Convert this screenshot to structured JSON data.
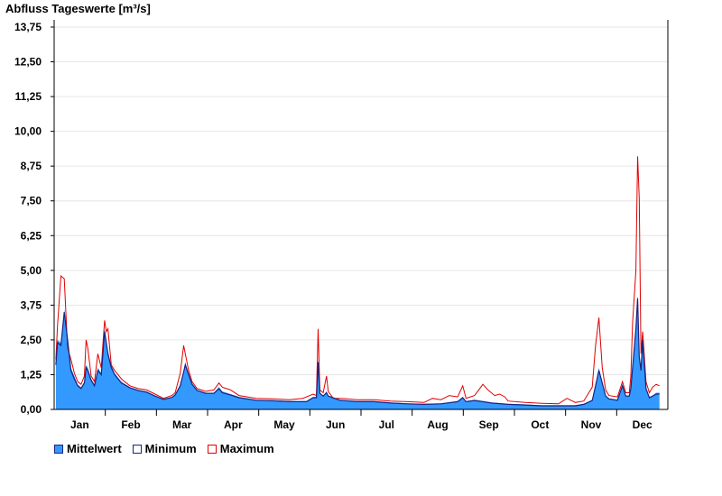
{
  "chart_data": {
    "type": "area",
    "title": "Abfluss Tageswerte [m³/s]",
    "xlabel": "",
    "ylabel": "",
    "ylim": [
      0,
      13.75
    ],
    "yticks": [
      "0,00",
      "1,25",
      "2,50",
      "3,75",
      "5,00",
      "6,25",
      "7,50",
      "8,75",
      "10,00",
      "11,25",
      "12,50",
      "13,75"
    ],
    "categories": [
      "Jan",
      "Feb",
      "Mar",
      "Apr",
      "May",
      "Jun",
      "Jul",
      "Aug",
      "Sep",
      "Oct",
      "Nov",
      "Dec"
    ],
    "grid": true,
    "legend_position": "bottom-left",
    "series": [
      {
        "name": "Mittelwert",
        "color": "#3399ff",
        "points": [
          [
            1,
            1.6
          ],
          [
            2,
            2.5
          ],
          [
            4,
            2.4
          ],
          [
            6,
            3.6
          ],
          [
            8,
            2.6
          ],
          [
            10,
            1.5
          ],
          [
            12,
            1.2
          ],
          [
            14,
            0.9
          ],
          [
            16,
            0.8
          ],
          [
            18,
            1.0
          ],
          [
            19,
            1.6
          ],
          [
            20,
            1.5
          ],
          [
            22,
            1.1
          ],
          [
            24,
            0.9
          ],
          [
            26,
            1.5
          ],
          [
            28,
            1.3
          ],
          [
            30,
            2.9
          ],
          [
            32,
            2.1
          ],
          [
            34,
            1.6
          ],
          [
            36,
            1.3
          ],
          [
            40,
            1.0
          ],
          [
            45,
            0.8
          ],
          [
            50,
            0.7
          ],
          [
            55,
            0.65
          ],
          [
            60,
            0.5
          ],
          [
            65,
            0.38
          ],
          [
            70,
            0.45
          ],
          [
            72,
            0.55
          ],
          [
            75,
            0.9
          ],
          [
            77,
            1.4
          ],
          [
            78,
            1.7
          ],
          [
            80,
            1.3
          ],
          [
            82,
            0.95
          ],
          [
            85,
            0.7
          ],
          [
            90,
            0.6
          ],
          [
            95,
            0.6
          ],
          [
            98,
            0.8
          ],
          [
            100,
            0.65
          ],
          [
            105,
            0.55
          ],
          [
            110,
            0.45
          ],
          [
            120,
            0.35
          ],
          [
            130,
            0.33
          ],
          [
            140,
            0.3
          ],
          [
            150,
            0.3
          ],
          [
            154,
            0.45
          ],
          [
            156,
            0.45
          ],
          [
            157,
            1.8
          ],
          [
            158,
            0.6
          ],
          [
            160,
            0.5
          ],
          [
            162,
            0.65
          ],
          [
            163,
            0.5
          ],
          [
            170,
            0.35
          ],
          [
            180,
            0.3
          ],
          [
            190,
            0.3
          ],
          [
            200,
            0.25
          ],
          [
            210,
            0.22
          ],
          [
            220,
            0.2
          ],
          [
            230,
            0.22
          ],
          [
            240,
            0.3
          ],
          [
            243,
            0.45
          ],
          [
            245,
            0.3
          ],
          [
            250,
            0.35
          ],
          [
            255,
            0.3
          ],
          [
            260,
            0.25
          ],
          [
            270,
            0.2
          ],
          [
            280,
            0.18
          ],
          [
            290,
            0.15
          ],
          [
            300,
            0.15
          ],
          [
            310,
            0.15
          ],
          [
            315,
            0.2
          ],
          [
            320,
            0.35
          ],
          [
            322,
            0.9
          ],
          [
            324,
            1.5
          ],
          [
            326,
            1.0
          ],
          [
            328,
            0.5
          ],
          [
            330,
            0.4
          ],
          [
            335,
            0.35
          ],
          [
            338,
            0.9
          ],
          [
            340,
            0.5
          ],
          [
            342,
            0.5
          ],
          [
            343,
            0.8
          ],
          [
            344,
            1.6
          ],
          [
            346,
            3.0
          ],
          [
            347,
            4.1
          ],
          [
            348,
            2.0
          ],
          [
            349,
            1.5
          ],
          [
            350,
            2.6
          ],
          [
            352,
            0.8
          ],
          [
            354,
            0.45
          ],
          [
            356,
            0.5
          ],
          [
            358,
            0.6
          ],
          [
            360,
            0.6
          ]
        ]
      },
      {
        "name": "Minimum",
        "color": "#1a237e",
        "points": [
          [
            1,
            1.6
          ],
          [
            2,
            2.4
          ],
          [
            4,
            2.3
          ],
          [
            6,
            3.5
          ],
          [
            8,
            2.5
          ],
          [
            10,
            1.4
          ],
          [
            12,
            1.1
          ],
          [
            14,
            0.85
          ],
          [
            16,
            0.75
          ],
          [
            18,
            0.95
          ],
          [
            19,
            1.5
          ],
          [
            20,
            1.4
          ],
          [
            22,
            1.05
          ],
          [
            24,
            0.85
          ],
          [
            26,
            1.4
          ],
          [
            28,
            1.25
          ],
          [
            30,
            2.8
          ],
          [
            32,
            2.0
          ],
          [
            34,
            1.5
          ],
          [
            36,
            1.25
          ],
          [
            40,
            0.95
          ],
          [
            45,
            0.78
          ],
          [
            50,
            0.68
          ],
          [
            55,
            0.62
          ],
          [
            60,
            0.48
          ],
          [
            65,
            0.36
          ],
          [
            70,
            0.43
          ],
          [
            72,
            0.52
          ],
          [
            75,
            0.85
          ],
          [
            77,
            1.35
          ],
          [
            78,
            1.6
          ],
          [
            80,
            1.25
          ],
          [
            82,
            0.9
          ],
          [
            85,
            0.68
          ],
          [
            90,
            0.58
          ],
          [
            95,
            0.58
          ],
          [
            98,
            0.75
          ],
          [
            100,
            0.6
          ],
          [
            105,
            0.52
          ],
          [
            110,
            0.42
          ],
          [
            120,
            0.33
          ],
          [
            130,
            0.31
          ],
          [
            140,
            0.28
          ],
          [
            150,
            0.28
          ],
          [
            154,
            0.42
          ],
          [
            156,
            0.42
          ],
          [
            157,
            1.7
          ],
          [
            158,
            0.58
          ],
          [
            160,
            0.48
          ],
          [
            162,
            0.6
          ],
          [
            163,
            0.48
          ],
          [
            170,
            0.33
          ],
          [
            180,
            0.28
          ],
          [
            190,
            0.28
          ],
          [
            200,
            0.23
          ],
          [
            210,
            0.2
          ],
          [
            220,
            0.18
          ],
          [
            230,
            0.2
          ],
          [
            240,
            0.28
          ],
          [
            243,
            0.42
          ],
          [
            245,
            0.28
          ],
          [
            250,
            0.32
          ],
          [
            255,
            0.28
          ],
          [
            260,
            0.23
          ],
          [
            270,
            0.18
          ],
          [
            280,
            0.16
          ],
          [
            290,
            0.13
          ],
          [
            300,
            0.13
          ],
          [
            310,
            0.13
          ],
          [
            315,
            0.18
          ],
          [
            320,
            0.32
          ],
          [
            322,
            0.85
          ],
          [
            324,
            1.4
          ],
          [
            326,
            0.95
          ],
          [
            328,
            0.48
          ],
          [
            330,
            0.38
          ],
          [
            335,
            0.33
          ],
          [
            338,
            0.85
          ],
          [
            340,
            0.48
          ],
          [
            342,
            0.48
          ],
          [
            343,
            0.75
          ],
          [
            344,
            1.5
          ],
          [
            346,
            2.9
          ],
          [
            347,
            4.0
          ],
          [
            348,
            1.9
          ],
          [
            349,
            1.4
          ],
          [
            350,
            2.5
          ],
          [
            352,
            0.75
          ],
          [
            354,
            0.42
          ],
          [
            356,
            0.48
          ],
          [
            358,
            0.55
          ],
          [
            360,
            0.55
          ]
        ]
      },
      {
        "name": "Maximum",
        "color": "#e00000",
        "points": [
          [
            1,
            1.8
          ],
          [
            2,
            3.0
          ],
          [
            4,
            4.8
          ],
          [
            6,
            4.7
          ],
          [
            8,
            2.2
          ],
          [
            10,
            1.8
          ],
          [
            12,
            1.3
          ],
          [
            14,
            1.0
          ],
          [
            16,
            0.9
          ],
          [
            18,
            1.2
          ],
          [
            19,
            2.5
          ],
          [
            20,
            2.2
          ],
          [
            22,
            1.2
          ],
          [
            24,
            1.0
          ],
          [
            26,
            2.0
          ],
          [
            28,
            1.5
          ],
          [
            30,
            3.2
          ],
          [
            31,
            2.8
          ],
          [
            32,
            2.9
          ],
          [
            34,
            1.6
          ],
          [
            36,
            1.4
          ],
          [
            40,
            1.1
          ],
          [
            45,
            0.85
          ],
          [
            50,
            0.75
          ],
          [
            55,
            0.7
          ],
          [
            60,
            0.55
          ],
          [
            65,
            0.4
          ],
          [
            70,
            0.5
          ],
          [
            72,
            0.6
          ],
          [
            75,
            1.3
          ],
          [
            77,
            2.3
          ],
          [
            78,
            2.0
          ],
          [
            80,
            1.4
          ],
          [
            82,
            1.0
          ],
          [
            85,
            0.75
          ],
          [
            90,
            0.65
          ],
          [
            95,
            0.7
          ],
          [
            98,
            0.95
          ],
          [
            100,
            0.8
          ],
          [
            105,
            0.7
          ],
          [
            110,
            0.5
          ],
          [
            120,
            0.4
          ],
          [
            130,
            0.38
          ],
          [
            140,
            0.35
          ],
          [
            148,
            0.4
          ],
          [
            152,
            0.5
          ],
          [
            154,
            0.55
          ],
          [
            156,
            0.5
          ],
          [
            157,
            2.9
          ],
          [
            158,
            0.7
          ],
          [
            160,
            0.6
          ],
          [
            162,
            1.2
          ],
          [
            163,
            0.65
          ],
          [
            166,
            0.4
          ],
          [
            170,
            0.4
          ],
          [
            180,
            0.35
          ],
          [
            190,
            0.35
          ],
          [
            200,
            0.3
          ],
          [
            210,
            0.28
          ],
          [
            220,
            0.25
          ],
          [
            225,
            0.4
          ],
          [
            230,
            0.35
          ],
          [
            235,
            0.5
          ],
          [
            240,
            0.45
          ],
          [
            243,
            0.85
          ],
          [
            245,
            0.4
          ],
          [
            250,
            0.5
          ],
          [
            255,
            0.9
          ],
          [
            258,
            0.7
          ],
          [
            262,
            0.5
          ],
          [
            265,
            0.55
          ],
          [
            268,
            0.45
          ],
          [
            270,
            0.3
          ],
          [
            280,
            0.25
          ],
          [
            290,
            0.22
          ],
          [
            300,
            0.2
          ],
          [
            305,
            0.4
          ],
          [
            310,
            0.25
          ],
          [
            315,
            0.3
          ],
          [
            320,
            0.8
          ],
          [
            322,
            2.3
          ],
          [
            324,
            3.3
          ],
          [
            326,
            1.5
          ],
          [
            328,
            0.7
          ],
          [
            330,
            0.5
          ],
          [
            335,
            0.45
          ],
          [
            338,
            1.0
          ],
          [
            340,
            0.6
          ],
          [
            342,
            0.6
          ],
          [
            343,
            1.2
          ],
          [
            344,
            3.1
          ],
          [
            346,
            5.0
          ],
          [
            347,
            9.1
          ],
          [
            348,
            7.6
          ],
          [
            349,
            2.0
          ],
          [
            350,
            2.8
          ],
          [
            352,
            1.0
          ],
          [
            354,
            0.6
          ],
          [
            356,
            0.8
          ],
          [
            358,
            0.9
          ],
          [
            360,
            0.85
          ]
        ]
      }
    ]
  }
}
